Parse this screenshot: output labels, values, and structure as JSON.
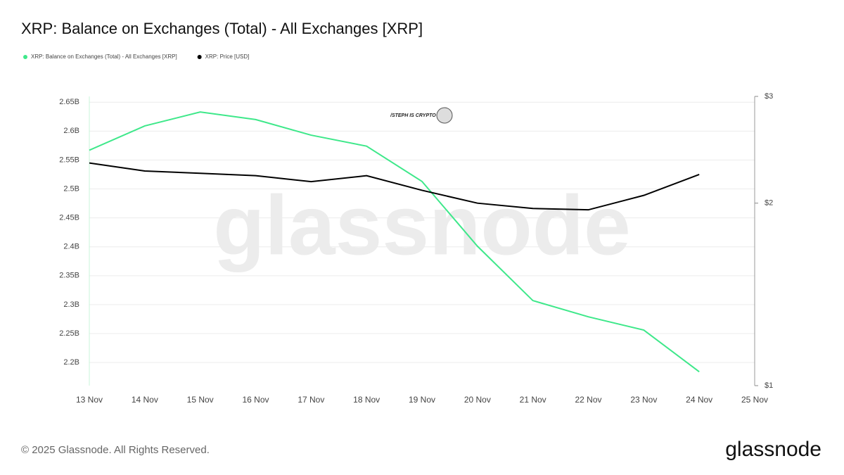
{
  "chart_data": {
    "type": "line",
    "title": "XRP: Balance on Exchanges (Total) - All Exchanges [XRP]",
    "watermark": "glassnode",
    "badge": "/STEPH IS CRYPTO",
    "footer": "© 2025 Glassnode. All Rights Reserved.",
    "logo": "glassnode",
    "categories": [
      "13 Nov",
      "14 Nov",
      "15 Nov",
      "16 Nov",
      "17 Nov",
      "18 Nov",
      "19 Nov",
      "20 Nov",
      "21 Nov",
      "22 Nov",
      "23 Nov",
      "24 Nov",
      "25 Nov"
    ],
    "series": [
      {
        "name": "XRP: Balance on Exchanges (Total) - All Exchanges [XRP]",
        "color": "#3ee88a",
        "values": [
          2.567,
          2.609,
          2.633,
          2.62,
          2.593,
          2.574,
          2.513,
          2.401,
          2.307,
          2.279,
          2.256,
          2.184,
          null
        ]
      },
      {
        "name": "XRP: Price [USD]",
        "color": "#000000",
        "axis": "y2",
        "values": [
          2.33,
          2.26,
          2.24,
          2.22,
          2.17,
          2.22,
          2.1,
          2.0,
          1.96,
          1.95,
          2.06,
          2.23,
          null
        ]
      }
    ],
    "ylim": [
      2.16,
      2.66
    ],
    "yticks": [
      {
        "value": 2.2,
        "label": "2.2B"
      },
      {
        "value": 2.25,
        "label": "2.25B"
      },
      {
        "value": 2.3,
        "label": "2.3B"
      },
      {
        "value": 2.35,
        "label": "2.35B"
      },
      {
        "value": 2.4,
        "label": "2.4B"
      },
      {
        "value": 2.45,
        "label": "2.45B"
      },
      {
        "value": 2.5,
        "label": "2.5B"
      },
      {
        "value": 2.55,
        "label": "2.55B"
      },
      {
        "value": 2.6,
        "label": "2.6B"
      },
      {
        "value": 2.65,
        "label": "2.65B"
      }
    ],
    "y2lim": [
      1,
      3
    ],
    "y2ticks": [
      {
        "value": 1,
        "label": "$1"
      },
      {
        "value": 2,
        "label": "$2"
      },
      {
        "value": 3,
        "label": "$3"
      }
    ],
    "y2log": true,
    "grid": true
  }
}
